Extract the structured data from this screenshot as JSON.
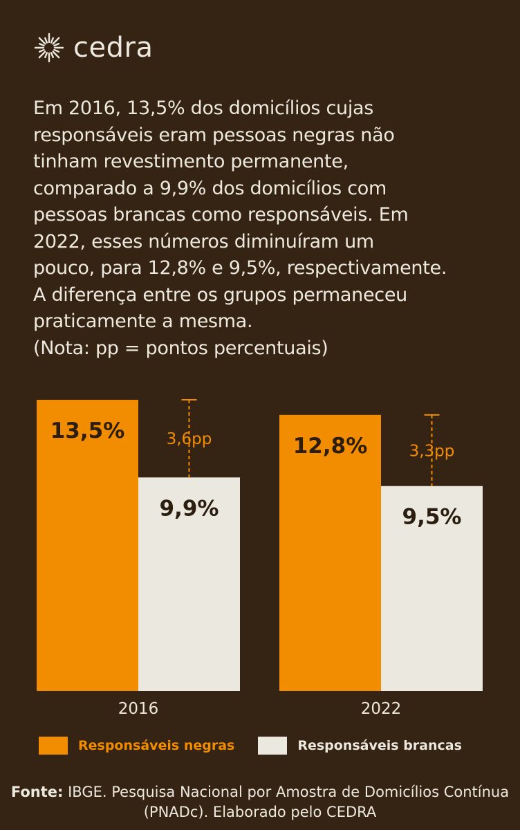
{
  "header": {
    "logo_text": "cedra"
  },
  "description": "Em 2016, 13,5% dos domicílios cujas\nresponsáveis eram pessoas negras não\ntinham revestimento permanente,\ncomparado a 9,9% dos domicílios com\npessoas brancas como responsáveis. Em\n2022, esses números diminuíram um\npouco, para 12,8% e 9,5%, respectivamente.\nA diferença entre os grupos permaneceu\npraticamente a mesma.\n(Nota: pp = pontos percentuais)",
  "colors": {
    "background": "#352313",
    "negras": "#f28c00",
    "brancas": "#ebe8df",
    "dark_text": "#2b1d10",
    "light_text": "#ede9df"
  },
  "chart_data": {
    "type": "bar",
    "categories": [
      "2016",
      "2022"
    ],
    "series": [
      {
        "name": "Responsáveis negras",
        "values": [
          13.5,
          12.8
        ],
        "labels": [
          "13,5%",
          "12,8%"
        ]
      },
      {
        "name": "Responsáveis brancas",
        "values": [
          9.9,
          9.5
        ],
        "labels": [
          "9,9%",
          "9,5%"
        ]
      }
    ],
    "differences": [
      "3,6pp",
      "3,3pp"
    ],
    "ylim": [
      0,
      13.5
    ],
    "grid": false,
    "legend": "bottom"
  },
  "legend": [
    {
      "label": "Responsáveis negras"
    },
    {
      "label": "Responsáveis brancas"
    }
  ],
  "source": {
    "label": "Fonte:",
    "text": " IBGE. Pesquisa Nacional por Amostra de Domicílios Contínua (PNADc). Elaborado pelo CEDRA"
  }
}
